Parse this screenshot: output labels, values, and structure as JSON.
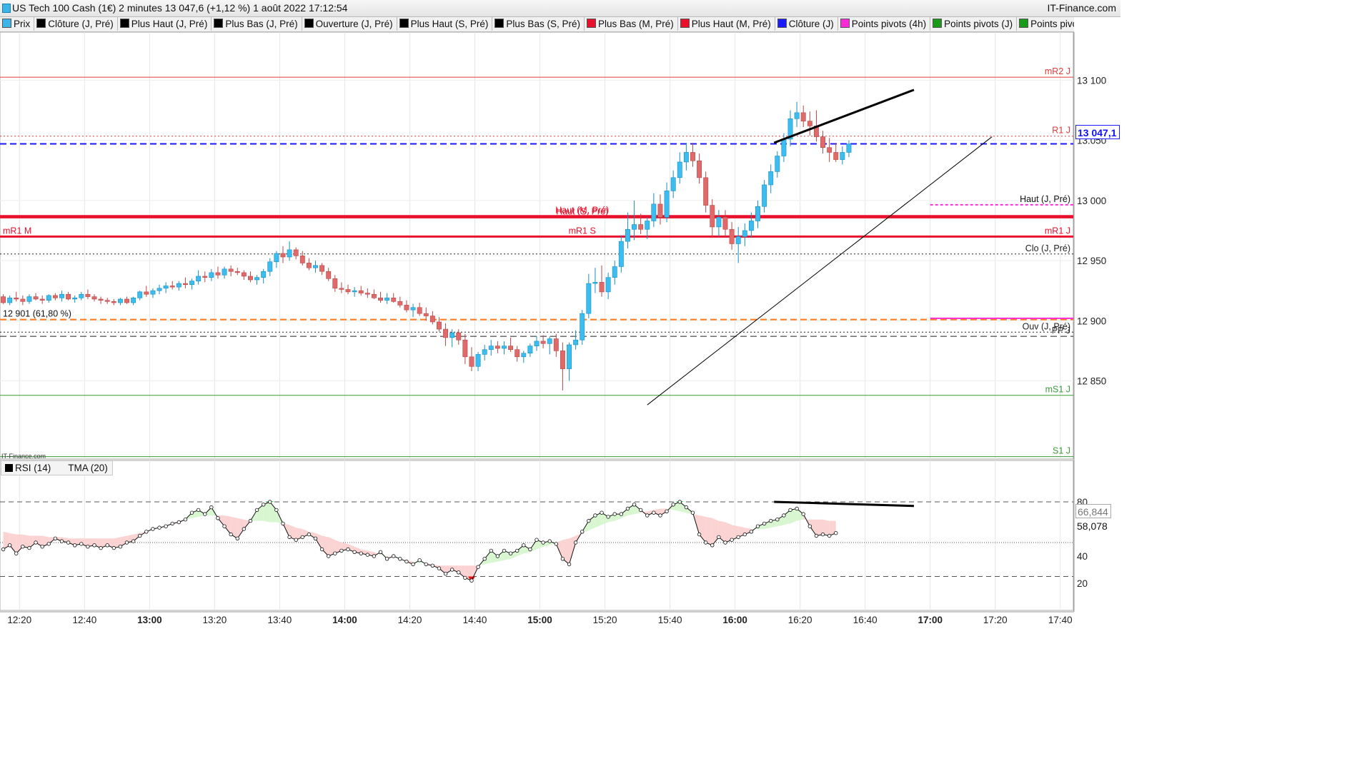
{
  "title": "US Tech 100 Cash (1€) 2 minutes 13 047,6 (+1,12 %) 1 août 2022 17:12:54",
  "brand": "IT-Finance.com",
  "watermark": "IT-Finance.com",
  "legend": [
    {
      "label": "Prix",
      "color": "#3bb5e8"
    },
    {
      "label": "Clôture (J, Pré)",
      "color": "#000000"
    },
    {
      "label": "Plus Haut (J, Pré)",
      "color": "#000000"
    },
    {
      "label": "Plus Bas (J, Pré)",
      "color": "#000000"
    },
    {
      "label": "Ouverture (J, Pré)",
      "color": "#000000"
    },
    {
      "label": "Plus Haut (S, Pré)",
      "color": "#000000"
    },
    {
      "label": "Plus Bas (S, Pré)",
      "color": "#000000"
    },
    {
      "label": "Plus Bas (M, Pré)",
      "color": "#e8102a"
    },
    {
      "label": "Plus Haut (M, Pré)",
      "color": "#e8102a"
    },
    {
      "label": "Clôture (J)",
      "color": "#1a1aff"
    },
    {
      "label": "Points pivots (4h)",
      "color": "#ff2bd6"
    },
    {
      "label": "Points pivots (J)",
      "color": "#1a9a1a"
    },
    {
      "label": "Points pivots",
      "color": "#1a9a1a"
    }
  ],
  "current_price_label": "13 047,1",
  "rsi_legend": {
    "rsi": "RSI (14)",
    "tma": "TMA (20)"
  },
  "rsi_values_labels": [
    "66,844",
    "58,078"
  ],
  "chart_data": {
    "type": "candlestick",
    "timeframe": "2 minutes",
    "price_axis": {
      "ylim": [
        12785,
        13140
      ],
      "ticks": [
        13100,
        13050,
        13000,
        12950,
        12900,
        12850
      ],
      "tick_labels": [
        "13 100",
        "13.050",
        "13 000",
        "12 950",
        "12 900",
        "12 850"
      ]
    },
    "time_axis": {
      "xlim": [
        "12:14",
        "17:44"
      ],
      "ticks": [
        "12:20",
        "12:40",
        "13:00",
        "13:20",
        "13:40",
        "14:00",
        "14:20",
        "14:40",
        "15:00",
        "15:20",
        "15:40",
        "16:00",
        "16:20",
        "16:40",
        "17:00",
        "17:20",
        "17:40"
      ],
      "bold_ticks": [
        "13:00",
        "14:00",
        "15:00",
        "16:00",
        "17:00"
      ]
    },
    "levels": [
      {
        "label": "mR2 J",
        "value": 13102.5,
        "color": "#e03b3b",
        "style": "solid",
        "label_side": "right"
      },
      {
        "label": "R1 J",
        "value": 13053.5,
        "color": "#e03b3b",
        "style": "dotted",
        "label_side": "right"
      },
      {
        "label": "",
        "value": 13047.1,
        "color": "#1a1aff",
        "style": "dashed",
        "label_side": "none"
      },
      {
        "label": "Haut (J, Pré)",
        "value": 12996.4,
        "color": "#ff2bd6",
        "style": "dashed-partial",
        "label_side": "right"
      },
      {
        "label": "Haut (S, Pré)",
        "value": 12986.0,
        "color": "#e8102a",
        "style": "solid-thick",
        "label_side": "center"
      },
      {
        "label": "Haut (M, Pré)",
        "value": 12987.0,
        "color": "#e8102a",
        "style": "solid-thick",
        "label_side": "center"
      },
      {
        "label": "mR1 M",
        "value": 12970.0,
        "color": "#e8102a",
        "style": "solid-thick",
        "label_side": "left"
      },
      {
        "label": "mR1 S",
        "value": 12970.0,
        "color": "#e8102a",
        "style": "none",
        "label_side": "center"
      },
      {
        "label": "mR1 J",
        "value": 12970.0,
        "color": "#e8102a",
        "style": "none",
        "label_side": "right"
      },
      {
        "label": "Clo (J, Pré)",
        "value": 12955.5,
        "color": "#222222",
        "style": "dotted",
        "label_side": "right"
      },
      {
        "label": "12 901 (61,80 %)",
        "value": 12901.0,
        "color": "#ff7a1a",
        "style": "dashed",
        "label_side": "left"
      },
      {
        "label": "",
        "value": 12902.0,
        "color": "#ff2bd6",
        "style": "solid-partial",
        "label_side": "none"
      },
      {
        "label": "Ouv (J, Pré)",
        "value": 12890.5,
        "color": "#222222",
        "style": "dotted",
        "label_side": "right"
      },
      {
        "label": "PP J",
        "value": 12887.0,
        "color": "#222222",
        "style": "dashed",
        "label_side": "right"
      },
      {
        "label": "mS1 J",
        "value": 12838.0,
        "color": "#3a9a3a",
        "style": "solid",
        "label_side": "right"
      },
      {
        "label": "S1 J",
        "value": 12787.0,
        "color": "#3a9a3a",
        "style": "solid",
        "label_side": "right"
      }
    ],
    "candles": [
      [
        12920,
        12922,
        12914,
        12915
      ],
      [
        12915,
        12921,
        12913,
        12919
      ],
      [
        12919,
        12924,
        12916,
        12918
      ],
      [
        12918,
        12921,
        12913,
        12916
      ],
      [
        12916,
        12922,
        12914,
        12920
      ],
      [
        12920,
        12923,
        12917,
        12918
      ],
      [
        12918,
        12921,
        12914,
        12917
      ],
      [
        12917,
        12922,
        12915,
        12921
      ],
      [
        12921,
        12923,
        12917,
        12919
      ],
      [
        12919,
        12925,
        12916,
        12922
      ],
      [
        12922,
        12924,
        12917,
        12918
      ],
      [
        12918,
        12921,
        12915,
        12919
      ],
      [
        12919,
        12924,
        12917,
        12922
      ],
      [
        12922,
        12926,
        12918,
        12920
      ],
      [
        12920,
        12922,
        12916,
        12918
      ],
      [
        12918,
        12920,
        12914,
        12917
      ],
      [
        12917,
        12919,
        12914,
        12916
      ],
      [
        12916,
        12918,
        12913,
        12915
      ],
      [
        12915,
        12919,
        12913,
        12918
      ],
      [
        12918,
        12920,
        12914,
        12915
      ],
      [
        12915,
        12920,
        12913,
        12919
      ],
      [
        12919,
        12925,
        12917,
        12924
      ],
      [
        12924,
        12929,
        12920,
        12922
      ],
      [
        12922,
        12927,
        12919,
        12925
      ],
      [
        12925,
        12930,
        12922,
        12927
      ],
      [
        12927,
        12932,
        12923,
        12929
      ],
      [
        12929,
        12933,
        12926,
        12928
      ],
      [
        12928,
        12933,
        12925,
        12931
      ],
      [
        12931,
        12936,
        12927,
        12930
      ],
      [
        12930,
        12935,
        12926,
        12933
      ],
      [
        12933,
        12942,
        12930,
        12937
      ],
      [
        12937,
        12941,
        12932,
        12936
      ],
      [
        12936,
        12943,
        12933,
        12940
      ],
      [
        12940,
        12945,
        12935,
        12938
      ],
      [
        12938,
        12945,
        12935,
        12943
      ],
      [
        12943,
        12946,
        12937,
        12941
      ],
      [
        12941,
        12944,
        12938,
        12940
      ],
      [
        12940,
        12942,
        12934,
        12937
      ],
      [
        12937,
        12941,
        12932,
        12934
      ],
      [
        12934,
        12938,
        12930,
        12936
      ],
      [
        12936,
        12943,
        12931,
        12941
      ],
      [
        12941,
        12952,
        12937,
        12949
      ],
      [
        12949,
        12958,
        12944,
        12956
      ],
      [
        12956,
        12962,
        12948,
        12953
      ],
      [
        12953,
        12966,
        12950,
        12959
      ],
      [
        12959,
        12961,
        12951,
        12954
      ],
      [
        12954,
        12958,
        12946,
        12948
      ],
      [
        12948,
        12952,
        12942,
        12944
      ],
      [
        12944,
        12950,
        12940,
        12946
      ],
      [
        12946,
        12948,
        12938,
        12941
      ],
      [
        12941,
        12944,
        12933,
        12935
      ],
      [
        12935,
        12938,
        12924,
        12927
      ],
      [
        12927,
        12932,
        12923,
        12926
      ],
      [
        12926,
        12930,
        12922,
        12924
      ],
      [
        12924,
        12928,
        12920,
        12925
      ],
      [
        12925,
        12929,
        12921,
        12923
      ],
      [
        12923,
        12927,
        12919,
        12922
      ],
      [
        12922,
        12926,
        12918,
        12919
      ],
      [
        12919,
        12924,
        12915,
        12917
      ],
      [
        12917,
        12923,
        12914,
        12919
      ],
      [
        12919,
        12923,
        12915,
        12916
      ],
      [
        12916,
        12920,
        12911,
        12913
      ],
      [
        12913,
        12917,
        12907,
        12909
      ],
      [
        12909,
        12914,
        12903,
        12911
      ],
      [
        12911,
        12915,
        12904,
        12906
      ],
      [
        12906,
        12911,
        12900,
        12904
      ],
      [
        12904,
        12908,
        12897,
        12899
      ],
      [
        12899,
        12903,
        12891,
        12893
      ],
      [
        12893,
        12898,
        12879,
        12886
      ],
      [
        12886,
        12893,
        12878,
        12890
      ],
      [
        12890,
        12893,
        12880,
        12884
      ],
      [
        12884,
        12889,
        12864,
        12870
      ],
      [
        12870,
        12878,
        12858,
        12862
      ],
      [
        12862,
        12874,
        12858,
        12872
      ],
      [
        12872,
        12880,
        12867,
        12876
      ],
      [
        12876,
        12884,
        12871,
        12879
      ],
      [
        12879,
        12883,
        12873,
        12877
      ],
      [
        12877,
        12883,
        12872,
        12879
      ],
      [
        12879,
        12886,
        12874,
        12876
      ],
      [
        12876,
        12879,
        12866,
        12870
      ],
      [
        12870,
        12875,
        12865,
        12873
      ],
      [
        12873,
        12881,
        12870,
        12879
      ],
      [
        12879,
        12887,
        12875,
        12883
      ],
      [
        12883,
        12888,
        12877,
        12881
      ],
      [
        12881,
        12887,
        12872,
        12885
      ],
      [
        12885,
        12889,
        12870,
        12875
      ],
      [
        12875,
        12882,
        12842,
        12860
      ],
      [
        12860,
        12882,
        12850,
        12880
      ],
      [
        12880,
        12892,
        12876,
        12884
      ],
      [
        12884,
        12909,
        12880,
        12906
      ],
      [
        12906,
        12939,
        12902,
        12931
      ],
      [
        12931,
        12944,
        12923,
        12932
      ],
      [
        12932,
        12946,
        12920,
        12924
      ],
      [
        12924,
        12940,
        12918,
        12936
      ],
      [
        12936,
        12950,
        12930,
        12945
      ],
      [
        12945,
        12971,
        12940,
        12966
      ],
      [
        12966,
        12990,
        12960,
        12976
      ],
      [
        12976,
        13000,
        12967,
        12980
      ],
      [
        12980,
        12989,
        12972,
        12976
      ],
      [
        12976,
        12986,
        12968,
        12983
      ],
      [
        12983,
        13006,
        12978,
        12997
      ],
      [
        12997,
        13005,
        12980,
        12986
      ],
      [
        12986,
        13015,
        12982,
        13008
      ],
      [
        13008,
        13025,
        13002,
        13019
      ],
      [
        13019,
        13040,
        13014,
        13032
      ],
      [
        13032,
        13048,
        13025,
        13040
      ],
      [
        13040,
        13048,
        13028,
        13033
      ],
      [
        13033,
        13039,
        13014,
        13019
      ],
      [
        13019,
        13024,
        12990,
        12996
      ],
      [
        12996,
        13001,
        12969,
        12978
      ],
      [
        12978,
        12992,
        12970,
        12986
      ],
      [
        12986,
        12992,
        12970,
        12976
      ],
      [
        12976,
        12982,
        12959,
        12964
      ],
      [
        12964,
        12978,
        12948,
        12970
      ],
      [
        12970,
        12981,
        12962,
        12975
      ],
      [
        12975,
        12990,
        12969,
        12983
      ],
      [
        12983,
        13000,
        12977,
        12995
      ],
      [
        12995,
        13017,
        12990,
        13013
      ],
      [
        13013,
        13030,
        13006,
        13024
      ],
      [
        13024,
        13041,
        13019,
        13037
      ],
      [
        13037,
        13056,
        13032,
        13051
      ],
      [
        13051,
        13075,
        13045,
        13068
      ],
      [
        13068,
        13082,
        13061,
        13073
      ],
      [
        13073,
        13079,
        13061,
        13066
      ],
      [
        13066,
        13074,
        13054,
        13062
      ],
      [
        13062,
        13075,
        13049,
        13053
      ],
      [
        13053,
        13058,
        13039,
        13044
      ],
      [
        13044,
        13052,
        13032,
        13040
      ],
      [
        13040,
        13048,
        13032,
        13034
      ],
      [
        13034,
        13045,
        13030,
        13040
      ],
      [
        13040,
        13050,
        13036,
        13047
      ]
    ],
    "trendlines": [
      {
        "from": [
          "16:12",
          13048
        ],
        "to": [
          "16:55",
          13092
        ],
        "color": "#000000",
        "width": 3
      },
      {
        "from": [
          "15:33",
          12830
        ],
        "to": [
          "17:19",
          13053
        ],
        "color": "#000000",
        "width": 1
      }
    ],
    "rsi": {
      "ylim": [
        0,
        100
      ],
      "ticks": [
        80,
        40,
        20
      ],
      "levels": [
        80,
        50,
        25
      ],
      "values": [
        45,
        48,
        42,
        47,
        46,
        50,
        47,
        49,
        53,
        51,
        50,
        48,
        49,
        47,
        48,
        46,
        48,
        46,
        47,
        50,
        51,
        55,
        58,
        60,
        61,
        62,
        64,
        65,
        67,
        72,
        74,
        71,
        76,
        68,
        62,
        56,
        53,
        60,
        66,
        74,
        78,
        80,
        74,
        64,
        54,
        52,
        54,
        56,
        53,
        45,
        40,
        42,
        44,
        45,
        43,
        42,
        41,
        40,
        43,
        38,
        40,
        38,
        36,
        34,
        37,
        34,
        33,
        31,
        27,
        30,
        28,
        24,
        22,
        32,
        38,
        44,
        40,
        44,
        42,
        44,
        48,
        45,
        52,
        50,
        51,
        49,
        38,
        34,
        50,
        58,
        66,
        70,
        72,
        69,
        71,
        71,
        75,
        78,
        74,
        70,
        72,
        70,
        73,
        78,
        80,
        76,
        72,
        56,
        50,
        48,
        54,
        50,
        52,
        54,
        56,
        58,
        62,
        64,
        66,
        67,
        70,
        74,
        75,
        71,
        62,
        55,
        56,
        55,
        57
      ],
      "tma": [
        58,
        57,
        56,
        56,
        55,
        55,
        55,
        54,
        54,
        54,
        53,
        53,
        53,
        53,
        53,
        53,
        53,
        53,
        54,
        55,
        56,
        57,
        58,
        60,
        61,
        63,
        64,
        66,
        67,
        68,
        69,
        70,
        70,
        70,
        70,
        69,
        68,
        67,
        66,
        66,
        66,
        65,
        65,
        64,
        63,
        61,
        60,
        58,
        57,
        55,
        54,
        52,
        50,
        49,
        47,
        45,
        44,
        43,
        41,
        40,
        39,
        38,
        37,
        36,
        35,
        35,
        34,
        33,
        33,
        33,
        33,
        33,
        33,
        33,
        34,
        35,
        36,
        37,
        38,
        40,
        42,
        43,
        45,
        47,
        48,
        50,
        52,
        53,
        55,
        57,
        59,
        61,
        63,
        65,
        66,
        68,
        70,
        71,
        72,
        73,
        74,
        75,
        75,
        74,
        73,
        72,
        71,
        70,
        69,
        68,
        66,
        65,
        63,
        62,
        61,
        60,
        60,
        60,
        61,
        62,
        63,
        64,
        66,
        67,
        67,
        67,
        67,
        66,
        66
      ]
    }
  }
}
